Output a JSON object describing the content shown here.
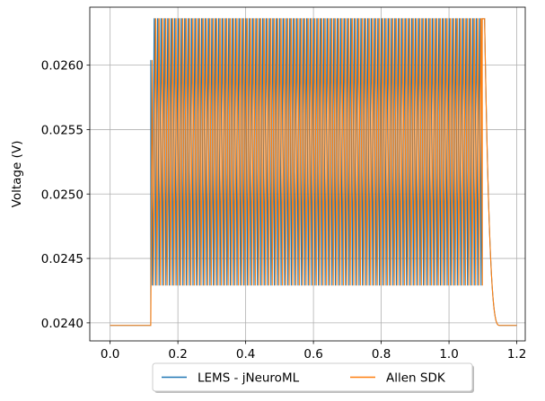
{
  "chart_data": {
    "type": "line",
    "ylabel": "Voltage (V)",
    "xlabel": "",
    "xlim": [
      -0.06,
      1.225
    ],
    "ylim": [
      0.02386,
      0.02645
    ],
    "x_ticks": [
      0.0,
      0.2,
      0.4,
      0.6,
      0.8,
      1.0,
      1.2
    ],
    "x_tick_labels": [
      "0.0",
      "0.2",
      "0.4",
      "0.6",
      "0.8",
      "1.0",
      "1.2"
    ],
    "y_ticks": [
      0.024,
      0.0245,
      0.025,
      0.0255,
      0.026
    ],
    "y_tick_labels": [
      "0.0240",
      "0.0245",
      "0.0250",
      "0.0255",
      "0.0260"
    ],
    "grid": true,
    "legend_position": "bottom-center-outside",
    "series": [
      {
        "name": "LEMS - jNeuroML",
        "color": "#1f77b4",
        "baseline": 0.02398,
        "stim_start": 0.12,
        "stim_end": 1.1,
        "oscillation_min": 0.02429,
        "oscillation_max": 0.02636,
        "period": 0.01,
        "first_peak": 0.02604,
        "decay_end": 1.15
      },
      {
        "name": "Allen SDK",
        "color": "#ff7f0e",
        "baseline": 0.02398,
        "stim_start": 0.12,
        "stim_end": 1.1,
        "oscillation_min": 0.02429,
        "oscillation_max": 0.02636,
        "period": 0.01,
        "first_peak": 0.02604,
        "decay_end": 1.15
      }
    ]
  }
}
